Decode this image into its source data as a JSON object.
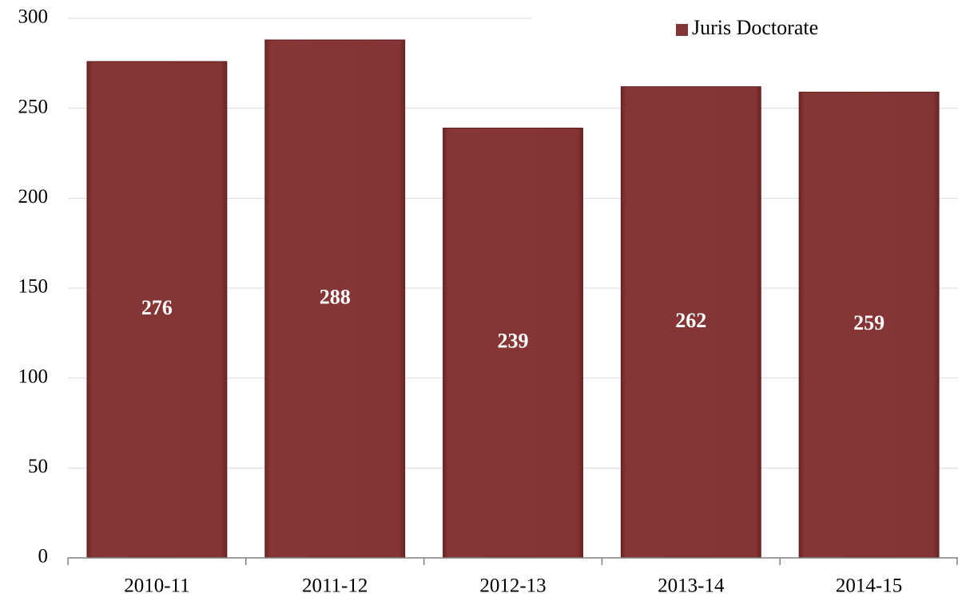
{
  "chart_data": {
    "type": "bar",
    "categories": [
      "2010-11",
      "2011-12",
      "2012-13",
      "2013-14",
      "2014-15"
    ],
    "series": [
      {
        "name": "Juris Doctorate",
        "color": "#843434",
        "values": [
          276,
          288,
          239,
          262,
          259
        ]
      }
    ],
    "ylim": [
      0,
      300
    ],
    "yticks": [
      0,
      50,
      100,
      150,
      200,
      250,
      300
    ],
    "grid": true,
    "legend": "top-right"
  }
}
